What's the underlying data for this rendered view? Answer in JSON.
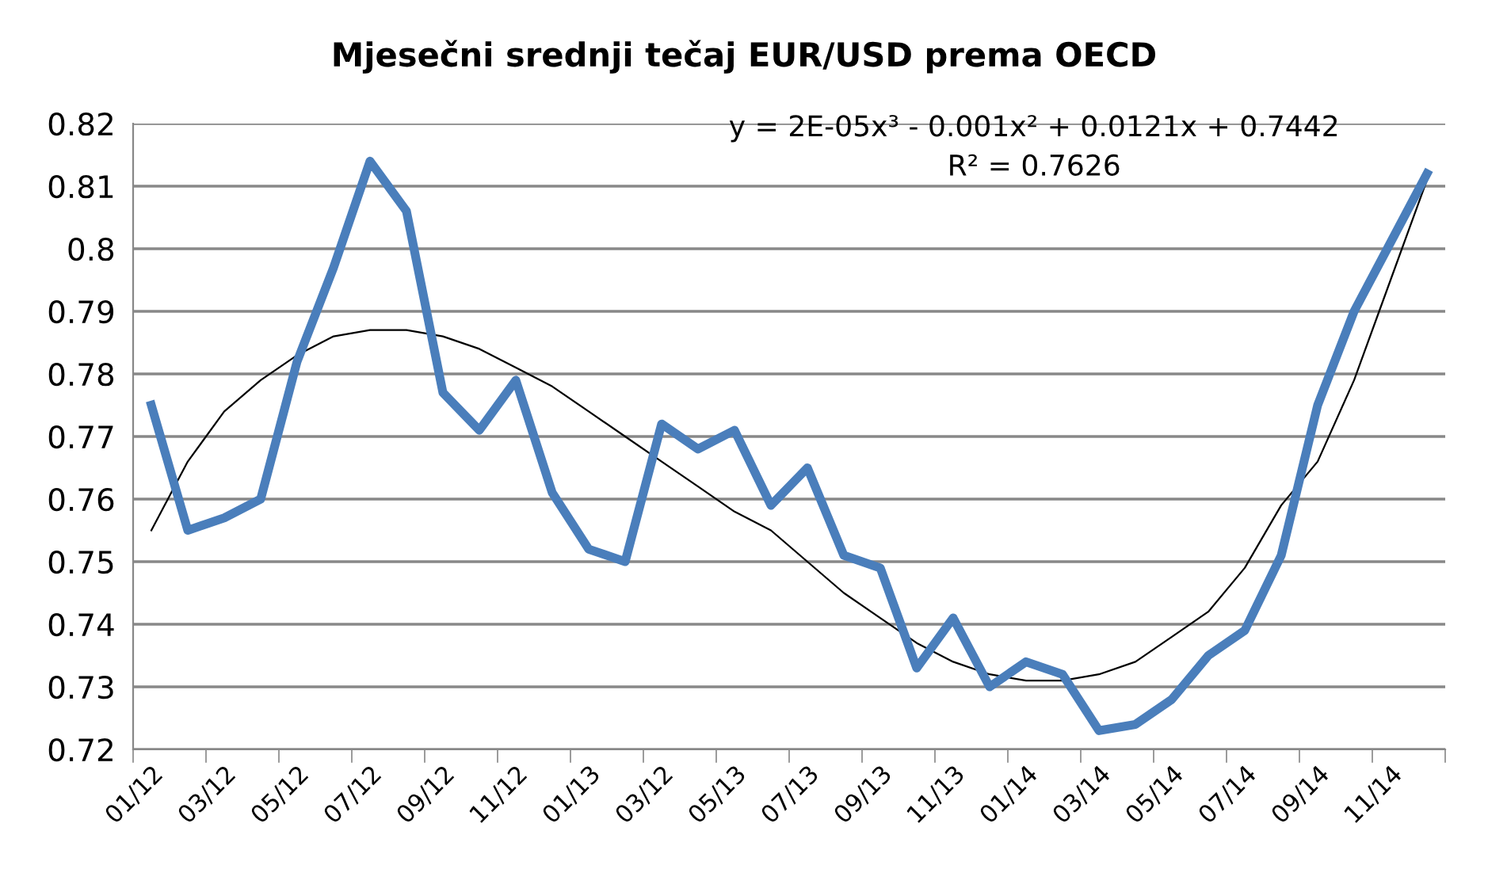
{
  "chart_data": {
    "type": "line",
    "title": "Mjesečni srednji tečaj EUR/USD prema OECD",
    "categories": [
      "01/12",
      null,
      "03/12",
      null,
      "05/12",
      null,
      "07/12",
      null,
      "09/12",
      null,
      "11/12",
      null,
      "01/13",
      null,
      "03/12",
      null,
      "05/13",
      null,
      "07/13",
      null,
      "09/13",
      null,
      "11/13",
      null,
      "01/14",
      null,
      "03/14",
      null,
      "05/14",
      null,
      "07/14",
      null,
      "09/14",
      null,
      "11/14",
      null
    ],
    "series": [
      {
        "color": "#4a7ebb",
        "values": [
          0.775,
          0.755,
          0.757,
          0.76,
          0.782,
          0.797,
          0.814,
          0.806,
          0.777,
          0.771,
          0.779,
          0.761,
          0.752,
          0.75,
          0.772,
          0.768,
          0.771,
          0.759,
          0.765,
          0.751,
          0.749,
          0.733,
          0.741,
          0.73,
          0.734,
          0.732,
          0.723,
          0.724,
          0.728,
          0.735,
          0.739,
          0.751,
          0.775,
          0.79,
          0.801,
          0.812
        ]
      },
      {
        "type": "line",
        "color": "#000000",
        "values": [
          0.755,
          0.766,
          0.774,
          0.779,
          0.783,
          0.786,
          0.787,
          0.787,
          0.786,
          0.784,
          0.781,
          0.778,
          0.774,
          0.77,
          0.766,
          0.762,
          0.758,
          0.755,
          0.75,
          0.745,
          0.741,
          0.737,
          0.734,
          0.732,
          0.731,
          0.731,
          0.732,
          0.734,
          0.738,
          0.742,
          0.749,
          0.759,
          0.766,
          0.779,
          0.795,
          0.811
        ]
      }
    ],
    "ylim": [
      0.72,
      0.82
    ],
    "yticks": [
      0.72,
      0.73,
      0.74,
      0.75,
      0.76,
      0.77,
      0.78,
      0.79,
      0.8,
      0.81,
      0.82
    ],
    "grid": "y",
    "legend": false,
    "marker": "none",
    "line_style": "solid",
    "annotations": [
      "y = 2E-05x³ - 0.001x² + 0.0121x + 0.7442",
      "R² = 0.7626"
    ]
  }
}
